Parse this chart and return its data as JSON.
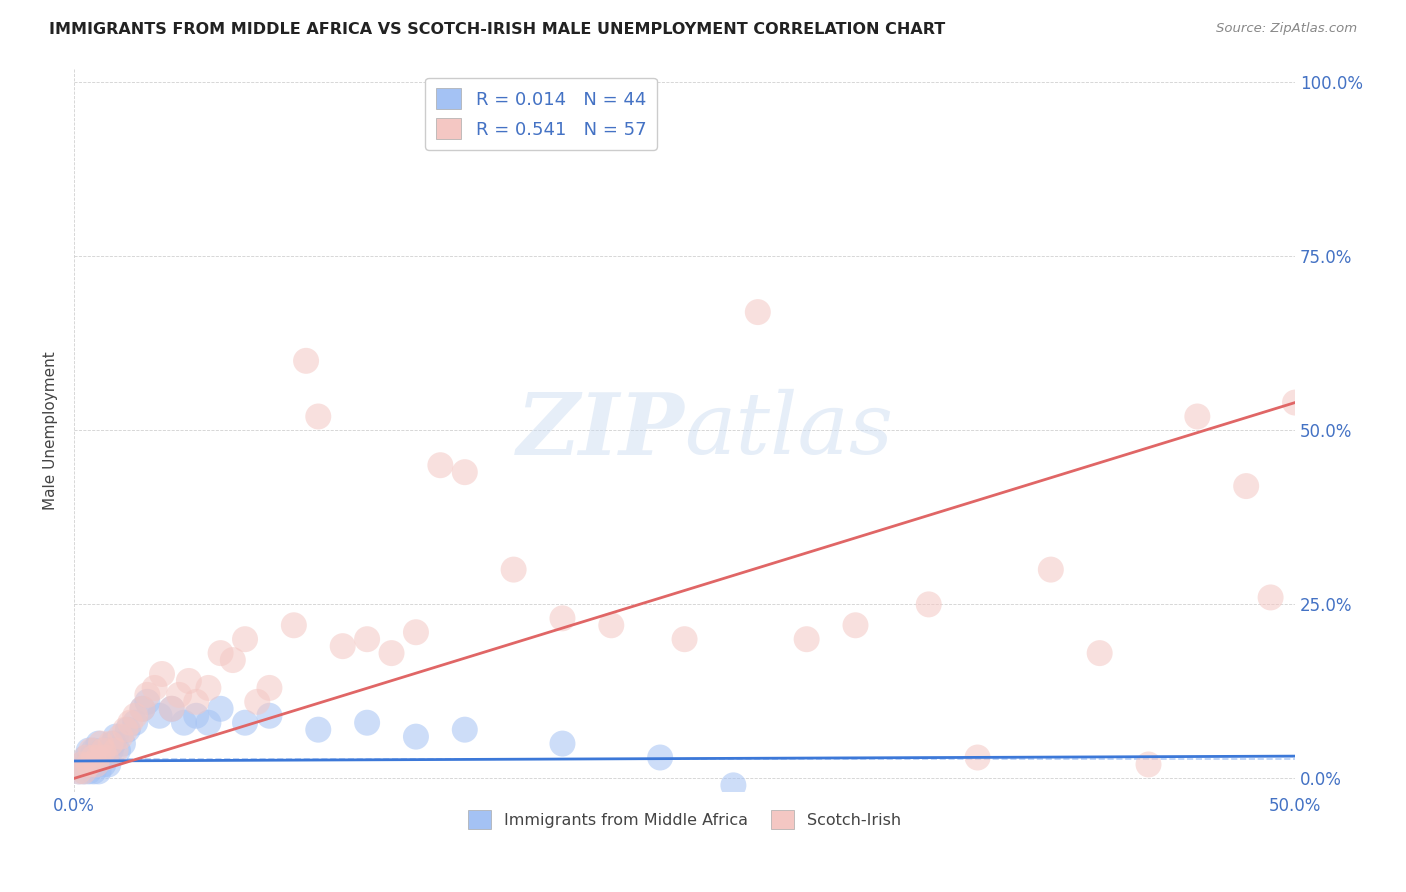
{
  "title": "IMMIGRANTS FROM MIDDLE AFRICA VS SCOTCH-IRISH MALE UNEMPLOYMENT CORRELATION CHART",
  "source": "Source: ZipAtlas.com",
  "ylabel": "Male Unemployment",
  "xlim": [
    0.0,
    0.5
  ],
  "ylim": [
    -0.02,
    1.02
  ],
  "legend_entry1_r": "R = 0.014",
  "legend_entry1_n": "N = 44",
  "legend_entry2_r": "R = 0.541",
  "legend_entry2_n": "N = 57",
  "legend_label1": "Immigrants from Middle Africa",
  "legend_label2": "Scotch-Irish",
  "color_blue": "#a4c2f4",
  "color_pink": "#f4c7c3",
  "color_line_blue": "#3c78d8",
  "color_line_pink": "#e06666",
  "color_dashed": "#a4c2f4",
  "color_axis_labels": "#4472c4",
  "background_color": "#ffffff",
  "blue_scatter_x": [
    0.002,
    0.003,
    0.004,
    0.005,
    0.005,
    0.006,
    0.006,
    0.007,
    0.007,
    0.008,
    0.008,
    0.009,
    0.009,
    0.01,
    0.01,
    0.011,
    0.012,
    0.012,
    0.013,
    0.014,
    0.015,
    0.016,
    0.017,
    0.018,
    0.02,
    0.022,
    0.025,
    0.028,
    0.03,
    0.035,
    0.04,
    0.045,
    0.05,
    0.055,
    0.06,
    0.07,
    0.08,
    0.1,
    0.12,
    0.14,
    0.16,
    0.2,
    0.24,
    0.27
  ],
  "blue_scatter_y": [
    0.01,
    0.02,
    0.01,
    0.02,
    0.03,
    0.01,
    0.04,
    0.02,
    0.03,
    0.01,
    0.04,
    0.02,
    0.03,
    0.01,
    0.05,
    0.03,
    0.04,
    0.02,
    0.03,
    0.02,
    0.04,
    0.05,
    0.06,
    0.04,
    0.05,
    0.07,
    0.08,
    0.1,
    0.11,
    0.09,
    0.1,
    0.08,
    0.09,
    0.08,
    0.1,
    0.08,
    0.09,
    0.07,
    0.08,
    0.06,
    0.07,
    0.05,
    0.03,
    -0.01
  ],
  "pink_scatter_x": [
    0.002,
    0.003,
    0.004,
    0.005,
    0.006,
    0.007,
    0.008,
    0.009,
    0.01,
    0.011,
    0.012,
    0.013,
    0.015,
    0.017,
    0.019,
    0.021,
    0.023,
    0.025,
    0.028,
    0.03,
    0.033,
    0.036,
    0.04,
    0.043,
    0.047,
    0.05,
    0.055,
    0.06,
    0.065,
    0.07,
    0.075,
    0.08,
    0.09,
    0.095,
    0.1,
    0.11,
    0.12,
    0.13,
    0.14,
    0.15,
    0.16,
    0.18,
    0.2,
    0.22,
    0.25,
    0.28,
    0.3,
    0.32,
    0.35,
    0.37,
    0.4,
    0.42,
    0.44,
    0.46,
    0.49,
    0.5,
    0.48
  ],
  "pink_scatter_y": [
    0.01,
    0.02,
    0.01,
    0.03,
    0.02,
    0.04,
    0.03,
    0.02,
    0.03,
    0.05,
    0.04,
    0.03,
    0.05,
    0.04,
    0.06,
    0.07,
    0.08,
    0.09,
    0.1,
    0.12,
    0.13,
    0.15,
    0.1,
    0.12,
    0.14,
    0.11,
    0.13,
    0.18,
    0.17,
    0.2,
    0.11,
    0.13,
    0.22,
    0.6,
    0.52,
    0.19,
    0.2,
    0.18,
    0.21,
    0.45,
    0.44,
    0.3,
    0.23,
    0.22,
    0.2,
    0.67,
    0.2,
    0.22,
    0.25,
    0.03,
    0.3,
    0.18,
    0.02,
    0.52,
    0.26,
    0.54,
    0.42
  ],
  "blue_trendline_x": [
    0.0,
    0.5
  ],
  "blue_trendline_y": [
    0.025,
    0.032
  ],
  "pink_trendline_x": [
    0.0,
    0.5
  ],
  "pink_trendline_y": [
    0.0,
    0.54
  ],
  "dashed_line_x": [
    0.0,
    0.5
  ],
  "dashed_line_y": [
    0.028,
    0.028
  ]
}
